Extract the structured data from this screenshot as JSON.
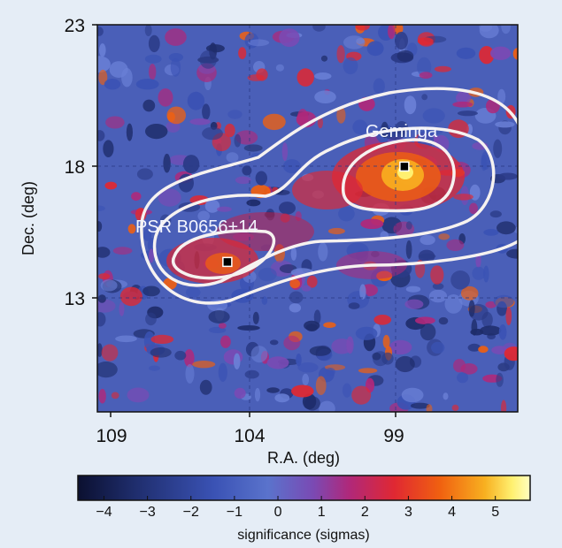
{
  "chart_data": {
    "type": "heatmap",
    "title": "",
    "xlabel": "R.A. (deg)",
    "ylabel": "Dec. (deg)",
    "xlim": [
      109.6,
      94.4
    ],
    "ylim": [
      8.8,
      23
    ],
    "x_ticks": [
      {
        "value": 109,
        "label": "109"
      },
      {
        "value": 104,
        "label": "104"
      },
      {
        "value": 99,
        "label": "99"
      }
    ],
    "y_ticks": [
      {
        "value": 23,
        "label": "23"
      },
      {
        "value": 18,
        "label": "18"
      },
      {
        "value": 13,
        "label": "13"
      }
    ],
    "grid": true,
    "sources": [
      {
        "name": "Geminga",
        "ra": 98.5,
        "dec": 17.8
      },
      {
        "name": "PSR B0656+14",
        "ra": 104.9,
        "dec": 14.3
      }
    ],
    "contours": "three nested significance contours enclosing both sources",
    "colorbar": {
      "label": "significance (sigmas)",
      "range": [
        -4.6,
        5.8
      ],
      "ticks": [
        {
          "value": -4,
          "label": "−4"
        },
        {
          "value": -3,
          "label": "−3"
        },
        {
          "value": -2,
          "label": "−2"
        },
        {
          "value": -1,
          "label": "−1"
        },
        {
          "value": 0,
          "label": "0"
        },
        {
          "value": 1,
          "label": "1"
        },
        {
          "value": 2,
          "label": "2"
        },
        {
          "value": 3,
          "label": "3"
        },
        {
          "value": 4,
          "label": "4"
        },
        {
          "value": 5,
          "label": "5"
        }
      ],
      "colors": [
        "#0b1030",
        "#2a3a86",
        "#4a63c6",
        "#5a73cc",
        "#7a4ab4",
        "#b0287a",
        "#e02832",
        "#f06010",
        "#f8b020",
        "#fff070",
        "#ffffc0"
      ]
    }
  }
}
